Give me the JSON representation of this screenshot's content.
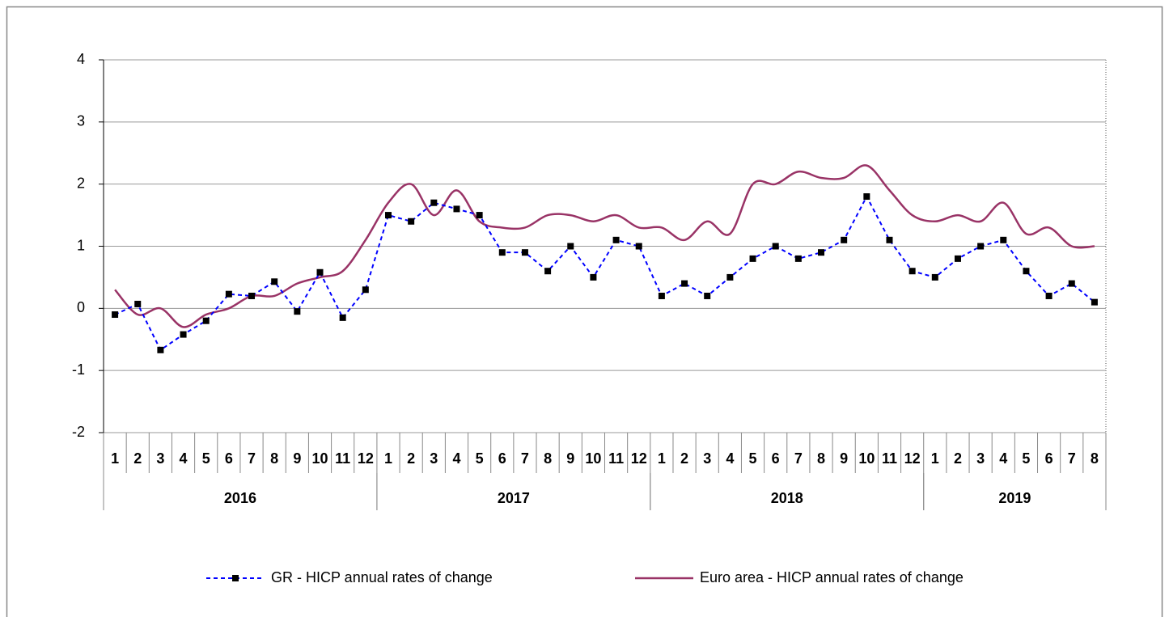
{
  "chart_data": {
    "type": "line",
    "categories": [
      "1",
      "2",
      "3",
      "4",
      "5",
      "6",
      "7",
      "8",
      "9",
      "10",
      "11",
      "12",
      "1",
      "2",
      "3",
      "4",
      "5",
      "6",
      "7",
      "8",
      "9",
      "10",
      "11",
      "12",
      "1",
      "2",
      "3",
      "4",
      "5",
      "6",
      "7",
      "8",
      "9",
      "10",
      "11",
      "12",
      "1",
      "2",
      "3",
      "4",
      "5",
      "6",
      "7",
      "8"
    ],
    "groups": [
      {
        "name": "2016",
        "count": 12
      },
      {
        "name": "2017",
        "count": 12
      },
      {
        "name": "2018",
        "count": 12
      },
      {
        "name": "2019",
        "count": 8
      }
    ],
    "series": [
      {
        "name": "GR - HICP annual rates of change",
        "color": "#0000ff",
        "dash": true,
        "marker": "square",
        "values": [
          -0.1,
          0.07,
          -0.67,
          -0.42,
          -0.2,
          0.23,
          0.2,
          0.43,
          -0.05,
          0.58,
          -0.15,
          0.3,
          1.5,
          1.4,
          1.7,
          1.6,
          1.5,
          0.9,
          0.9,
          0.6,
          1.0,
          0.5,
          1.1,
          1.0,
          0.2,
          0.4,
          0.2,
          0.5,
          0.8,
          1.0,
          0.8,
          0.9,
          1.1,
          1.8,
          1.1,
          0.6,
          0.5,
          0.8,
          1.0,
          1.1,
          0.6,
          0.2,
          0.4,
          0.1
        ]
      },
      {
        "name": "Euro area - HICP annual rates of change",
        "color": "#993366",
        "smooth": true,
        "values": [
          0.3,
          -0.1,
          0.0,
          -0.3,
          -0.1,
          0.0,
          0.2,
          0.2,
          0.4,
          0.5,
          0.6,
          1.1,
          1.7,
          2.0,
          1.5,
          1.9,
          1.4,
          1.3,
          1.3,
          1.5,
          1.5,
          1.4,
          1.5,
          1.3,
          1.3,
          1.1,
          1.4,
          1.2,
          2.0,
          2.0,
          2.2,
          2.1,
          2.1,
          2.3,
          1.9,
          1.5,
          1.4,
          1.5,
          1.4,
          1.7,
          1.2,
          1.3,
          1.0,
          1.0
        ]
      }
    ],
    "ylim": [
      -2,
      4
    ],
    "yticks": [
      -2,
      -1,
      0,
      1,
      2,
      3,
      4
    ],
    "grid": true,
    "legend": "bottom"
  }
}
